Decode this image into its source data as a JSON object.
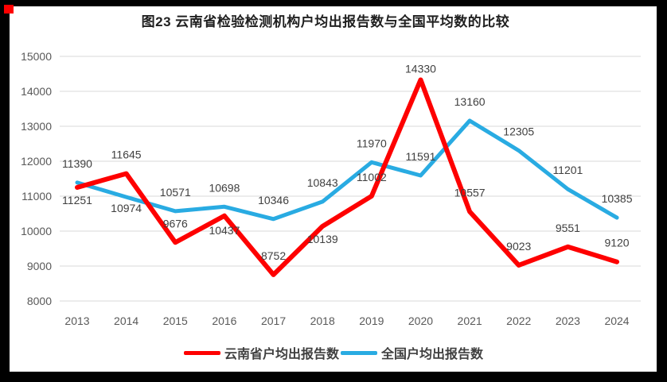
{
  "frame": {
    "border_color": "#000000",
    "corner_marker_color": "#ff0000"
  },
  "title": "图23 云南省检验检测机构户均出报告数与全国平均数的比较",
  "chart_data": {
    "type": "line",
    "categories": [
      "2013",
      "2014",
      "2015",
      "2016",
      "2017",
      "2018",
      "2019",
      "2020",
      "2021",
      "2022",
      "2023",
      "2024"
    ],
    "series": [
      {
        "name": "云南省户均出报告数",
        "color": "#fe0000",
        "values": [
          11251,
          11645,
          9676,
          10437,
          8752,
          10139,
          11002,
          14330,
          10557,
          9023,
          9551,
          9120
        ]
      },
      {
        "name": "全国户均出报告数",
        "color": "#29abe2",
        "values": [
          11390,
          10974,
          10571,
          10698,
          10346,
          10843,
          11970,
          11591,
          13160,
          12305,
          11201,
          10385
        ]
      }
    ],
    "ylim": [
      8000,
      15000
    ],
    "yticks": [
      15000,
      14000,
      13000,
      12000,
      11000,
      10000,
      9000,
      8000
    ],
    "grid": true,
    "gridline_color": "#d9d9d9",
    "data_labels": true,
    "legend_position": "bottom"
  }
}
